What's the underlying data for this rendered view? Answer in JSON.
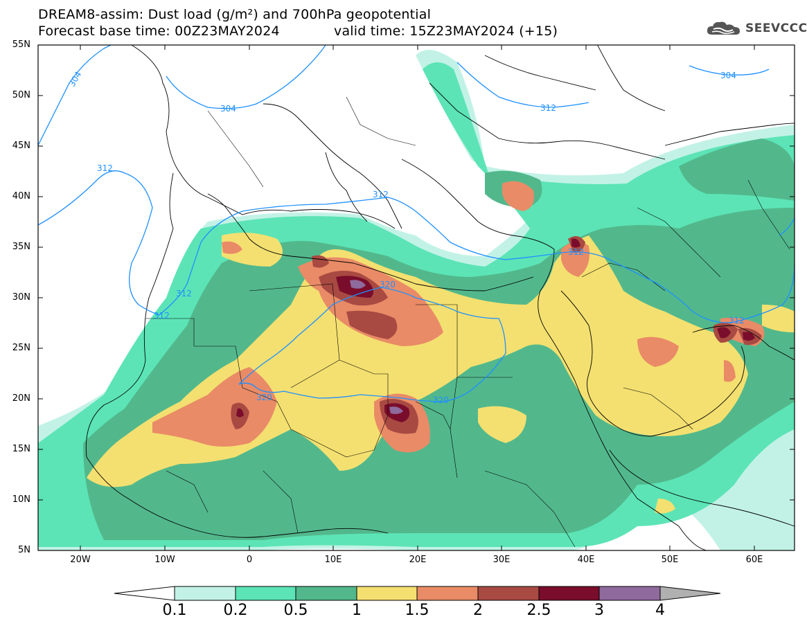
{
  "title": {
    "line1": "DREAM8-assim: Dust load (g/m²) and 700hPa geopotential",
    "line2": "Forecast base time: 00Z23MAY2024",
    "line2b": "valid time: 15Z23MAY2024 (+15)"
  },
  "logo": {
    "text": "SEEVCCC",
    "icon": "cloud-icon"
  },
  "axes": {
    "lat_labels": [
      "55N",
      "50N",
      "45N",
      "40N",
      "35N",
      "30N",
      "25N",
      "20N",
      "15N",
      "10N",
      "5N"
    ],
    "lon_labels": [
      "20W",
      "10W",
      "0",
      "10E",
      "20E",
      "30E",
      "40E",
      "50E",
      "60E"
    ]
  },
  "contours": {
    "labels": [
      "304",
      "304",
      "304",
      "312",
      "312",
      "312",
      "312",
      "312",
      "312",
      "320",
      "320",
      "320",
      "312"
    ]
  },
  "colorbar": {
    "labels": [
      "0.1",
      "0.2",
      "0.5",
      "1",
      "1.5",
      "2",
      "2.5",
      "3",
      "4"
    ],
    "colors": [
      "#c2f2e6",
      "#5ce4b6",
      "#52b88c",
      "#f4e070",
      "#e98b67",
      "#a84a42",
      "#7a0d2b",
      "#8f6a9c",
      "#b0b0b0"
    ]
  },
  "colors": {
    "contour": "#1e90ff",
    "coast": "#000000",
    "border": "#000000"
  }
}
